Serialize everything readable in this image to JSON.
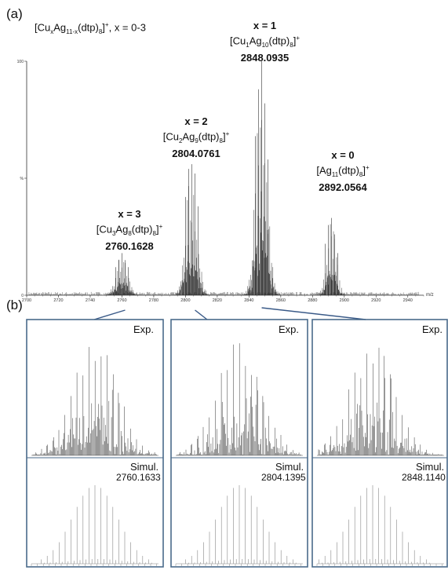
{
  "panel_a": {
    "label": "(a)",
    "general_formula": {
      "pre": "[Cu",
      "s1": "x",
      "mid": "Ag",
      "s2": "11-x",
      "mid2": "(dtp)",
      "s3": "8",
      "close": "]",
      "sup": "+",
      "tail": ", x = 0-3"
    },
    "y_ticks": [
      "100",
      "%",
      "0"
    ],
    "x_unit": "m/z",
    "peaks": [
      {
        "x_label": "x = 3",
        "f1": "[Cu",
        "s1": "3",
        "f2": "Ag",
        "s2": "8",
        "f3": "(dtp)",
        "s3": "8",
        "f4": "]",
        "sup": "+",
        "mz": "2760.1628"
      },
      {
        "x_label": "x = 2",
        "f1": "[Cu",
        "s1": "2",
        "f2": "Ag",
        "s2": "9",
        "f3": "(dtp)",
        "s3": "8",
        "f4": "]",
        "sup": "+",
        "mz": "2804.0761"
      },
      {
        "x_label": "x = 1",
        "f1": "[Cu",
        "s1": "1",
        "f2": "Ag",
        "s2": "10",
        "f3": "(dtp)",
        "s3": "8",
        "f4": "]",
        "sup": "+",
        "mz": "2848.0935"
      },
      {
        "x_label": "x = 0",
        "f1": "[Ag",
        "s1": "11",
        "f2": "(dtp)",
        "s2": "8",
        "f3": "",
        "s3": "",
        "f4": "]",
        "sup": "+",
        "mz": "2892.0564"
      }
    ]
  },
  "panel_b": {
    "label": "(b)",
    "exp_label": "Exp.",
    "sim_label": "Simul.",
    "insets": [
      {
        "sim_mz": "2760.1633"
      },
      {
        "sim_mz": "2804.1395"
      },
      {
        "sim_mz": "2848.1140"
      }
    ]
  },
  "chart_data": {
    "type": "line",
    "x_tick_labels": [
      "2700",
      "2720",
      "2740",
      "2760",
      "2780",
      "2800",
      "2820",
      "2840",
      "2860",
      "2880",
      "2900",
      "2920",
      "2940"
    ],
    "xlim": [
      2700,
      2950
    ],
    "ylim": [
      0,
      100
    ],
    "xlabel": "m/z",
    "ylabel": "%",
    "series": [
      {
        "values": [
          [
            2756,
            12
          ],
          [
            2758,
            15
          ],
          [
            2760,
            18
          ],
          [
            2762,
            15
          ],
          [
            2764,
            12
          ],
          [
            2800,
            42
          ],
          [
            2802,
            54
          ],
          [
            2804,
            56
          ],
          [
            2806,
            52
          ],
          [
            2808,
            38
          ],
          [
            2844,
            68
          ],
          [
            2846,
            88
          ],
          [
            2848,
            100
          ],
          [
            2850,
            82
          ],
          [
            2852,
            58
          ],
          [
            2888,
            22
          ],
          [
            2890,
            30
          ],
          [
            2892,
            33
          ],
          [
            2894,
            26
          ],
          [
            2896,
            18
          ]
        ]
      }
    ],
    "colors": {
      "line": "#222222",
      "frame": "#4a6a8a",
      "connector": "#3a5a88"
    }
  }
}
